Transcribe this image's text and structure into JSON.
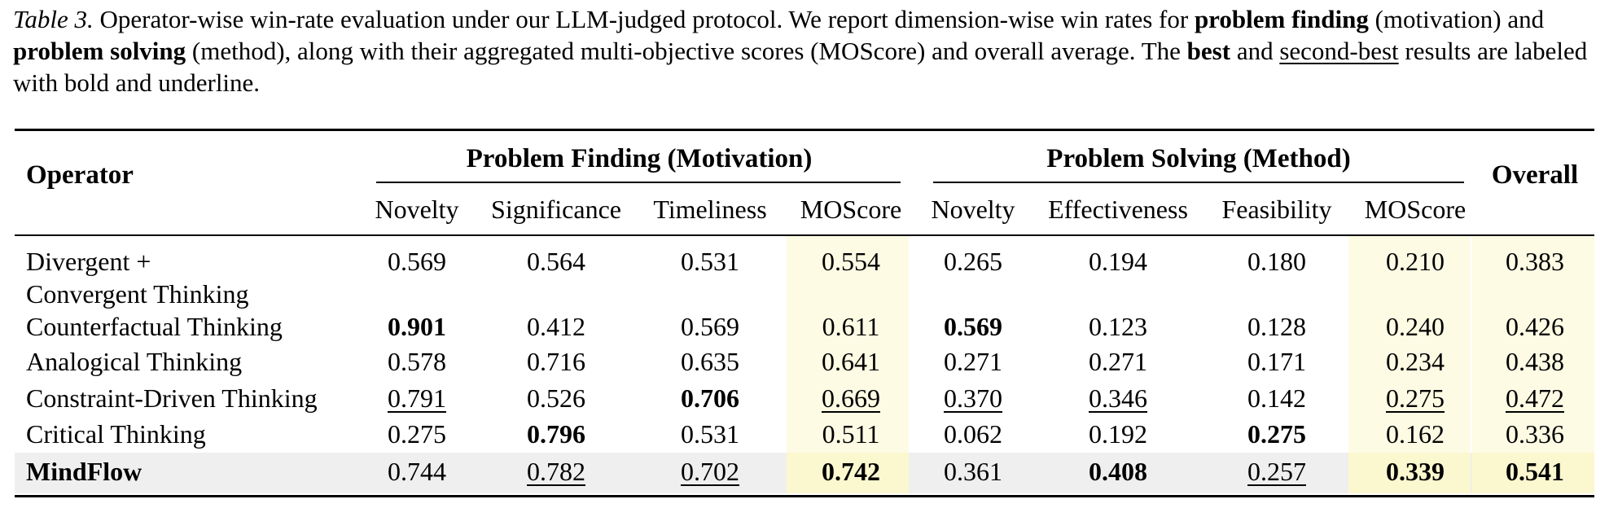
{
  "caption": {
    "label": "Table 3.",
    "p1": " Operator-wise win-rate evaluation under our LLM-judged protocol. We report dimension-wise win rates for ",
    "b1": "problem finding",
    "p2": " (motivation) and ",
    "b2": "problem solving",
    "p3": " (method), along with their aggregated multi-objective scores (MOScore) and overall average. The ",
    "b3": "best",
    "p4": " and ",
    "u1": "second-best",
    "p5": " results are labeled with bold and underline."
  },
  "headers": {
    "operator": "Operator",
    "group_finding": "Problem Finding (Motivation)",
    "group_solving": "Problem Solving (Method)",
    "overall": "Overall",
    "columns": [
      "Novelty",
      "Significance",
      "Timeliness",
      "MOScore",
      "Novelty",
      "Effectiveness",
      "Feasibility",
      "MOScore"
    ]
  },
  "rows": [
    {
      "operator": "Divergent +",
      "operator_line2": "Convergent Thinking",
      "values": [
        "0.569",
        "0.564",
        "0.531",
        "0.554",
        "0.265",
        "0.194",
        "0.180",
        "0.210",
        "0.383"
      ],
      "styles": [
        "",
        "",
        "",
        "",
        "",
        "",
        "",
        "",
        ""
      ]
    },
    {
      "operator": "Counterfactual Thinking",
      "values": [
        "0.901",
        "0.412",
        "0.569",
        "0.611",
        "0.569",
        "0.123",
        "0.128",
        "0.240",
        "0.426"
      ],
      "styles": [
        "b",
        "",
        "",
        "",
        "b",
        "",
        "",
        "",
        ""
      ]
    },
    {
      "operator": "Analogical Thinking",
      "values": [
        "0.578",
        "0.716",
        "0.635",
        "0.641",
        "0.271",
        "0.271",
        "0.171",
        "0.234",
        "0.438"
      ],
      "styles": [
        "",
        "",
        "",
        "",
        "",
        "",
        "",
        "",
        ""
      ]
    },
    {
      "operator": "Constraint-Driven Thinking",
      "values": [
        "0.791",
        "0.526",
        "0.706",
        "0.669",
        "0.370",
        "0.346",
        "0.142",
        "0.275",
        "0.472"
      ],
      "styles": [
        "u",
        "",
        "b",
        "u",
        "u",
        "u",
        "",
        "u",
        "u"
      ]
    },
    {
      "operator": "Critical Thinking",
      "values": [
        "0.275",
        "0.796",
        "0.531",
        "0.511",
        "0.062",
        "0.192",
        "0.275",
        "0.162",
        "0.336"
      ],
      "styles": [
        "",
        "b",
        "",
        "",
        "",
        "",
        "b",
        "",
        ""
      ]
    },
    {
      "operator": "MindFlow",
      "operator_bold": true,
      "values": [
        "0.744",
        "0.782",
        "0.702",
        "0.742",
        "0.361",
        "0.408",
        "0.257",
        "0.339",
        "0.541"
      ],
      "styles": [
        "",
        "u",
        "u",
        "b",
        "",
        "b",
        "u",
        "b",
        "b"
      ]
    }
  ],
  "colors": {
    "moscore_shade": "#fdfbe4",
    "highlight_row": "#efefef"
  }
}
